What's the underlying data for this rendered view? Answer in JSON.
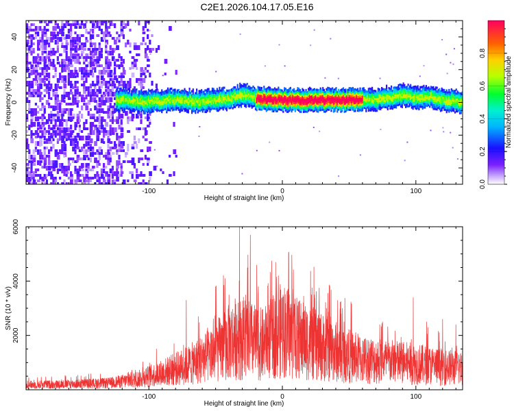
{
  "title": "C2E1.2026.104.17.05.E16",
  "colors": {
    "snr_line": "#ee3333",
    "background": "#ffffff",
    "axis": "#000000"
  },
  "chart_data": [
    {
      "type": "heatmap",
      "name": "spectrogram",
      "xlabel": "Height of straight line (km)",
      "ylabel": "Frequency (Hz)",
      "xlim": [
        -192,
        135
      ],
      "ylim": [
        -50,
        50
      ],
      "xticks": [
        -100,
        0,
        100
      ],
      "yticks": [
        -40,
        -20,
        0,
        20,
        40
      ],
      "colorbar": {
        "label": "Normalized spectral amplitude",
        "range": [
          0,
          1
        ],
        "ticks": [
          "0.0",
          "0.2",
          "0.4",
          "0.6",
          "0.8"
        ],
        "tick_values": [
          0.0,
          0.2,
          0.4,
          0.6,
          0.8
        ]
      },
      "ridge": {
        "description": "narrowband signal near 0 Hz",
        "x_start": -125,
        "x_end": 135,
        "center_hz": [
          [
            -125,
            2
          ],
          [
            -100,
            1
          ],
          [
            -80,
            2
          ],
          [
            -60,
            1
          ],
          [
            -40,
            3
          ],
          [
            -30,
            5
          ],
          [
            -20,
            3
          ],
          [
            0,
            2
          ],
          [
            20,
            2
          ],
          [
            40,
            2
          ],
          [
            60,
            2
          ],
          [
            75,
            3
          ],
          [
            90,
            5
          ],
          [
            100,
            3
          ],
          [
            110,
            4
          ],
          [
            120,
            2
          ],
          [
            135,
            1
          ]
        ]
      }
    },
    {
      "type": "line",
      "name": "snr",
      "xlabel": "Height of straight line (km)",
      "ylabel": "SNR (10 * v/v)",
      "xlim": [
        -192,
        135
      ],
      "ylim": [
        0,
        6000
      ],
      "xticks": [
        -100,
        0,
        100
      ],
      "yticks": [
        2000,
        4000,
        6000
      ],
      "envelope": [
        [
          -192,
          220
        ],
        [
          -160,
          250
        ],
        [
          -130,
          300
        ],
        [
          -110,
          450
        ],
        [
          -90,
          750
        ],
        [
          -70,
          1100
        ],
        [
          -55,
          1500
        ],
        [
          -45,
          1900
        ],
        [
          -35,
          2300
        ],
        [
          -25,
          2200
        ],
        [
          -15,
          2000
        ],
        [
          -5,
          2400
        ],
        [
          0,
          2700
        ],
        [
          10,
          2300
        ],
        [
          20,
          2100
        ],
        [
          30,
          1900
        ],
        [
          40,
          1700
        ],
        [
          50,
          1500
        ],
        [
          60,
          1350
        ],
        [
          80,
          1250
        ],
        [
          100,
          1150
        ],
        [
          115,
          1050
        ],
        [
          135,
          950
        ]
      ],
      "peaks": [
        [
          -72,
          3300
        ],
        [
          -63,
          2700
        ],
        [
          -50,
          3800
        ],
        [
          -43,
          4100
        ],
        [
          -40,
          3500
        ],
        [
          -32,
          6000
        ],
        [
          -24,
          5700
        ],
        [
          -18,
          3800
        ],
        [
          -8,
          4750
        ],
        [
          -5,
          4700
        ],
        [
          -3,
          4200
        ],
        [
          8,
          3700
        ],
        [
          16,
          3450
        ],
        [
          24,
          3500
        ],
        [
          33,
          3000
        ],
        [
          44,
          2800
        ],
        [
          73,
          2400
        ],
        [
          98,
          3400
        ],
        [
          108,
          2500
        ],
        [
          120,
          2600
        ],
        [
          130,
          2400
        ]
      ]
    }
  ]
}
